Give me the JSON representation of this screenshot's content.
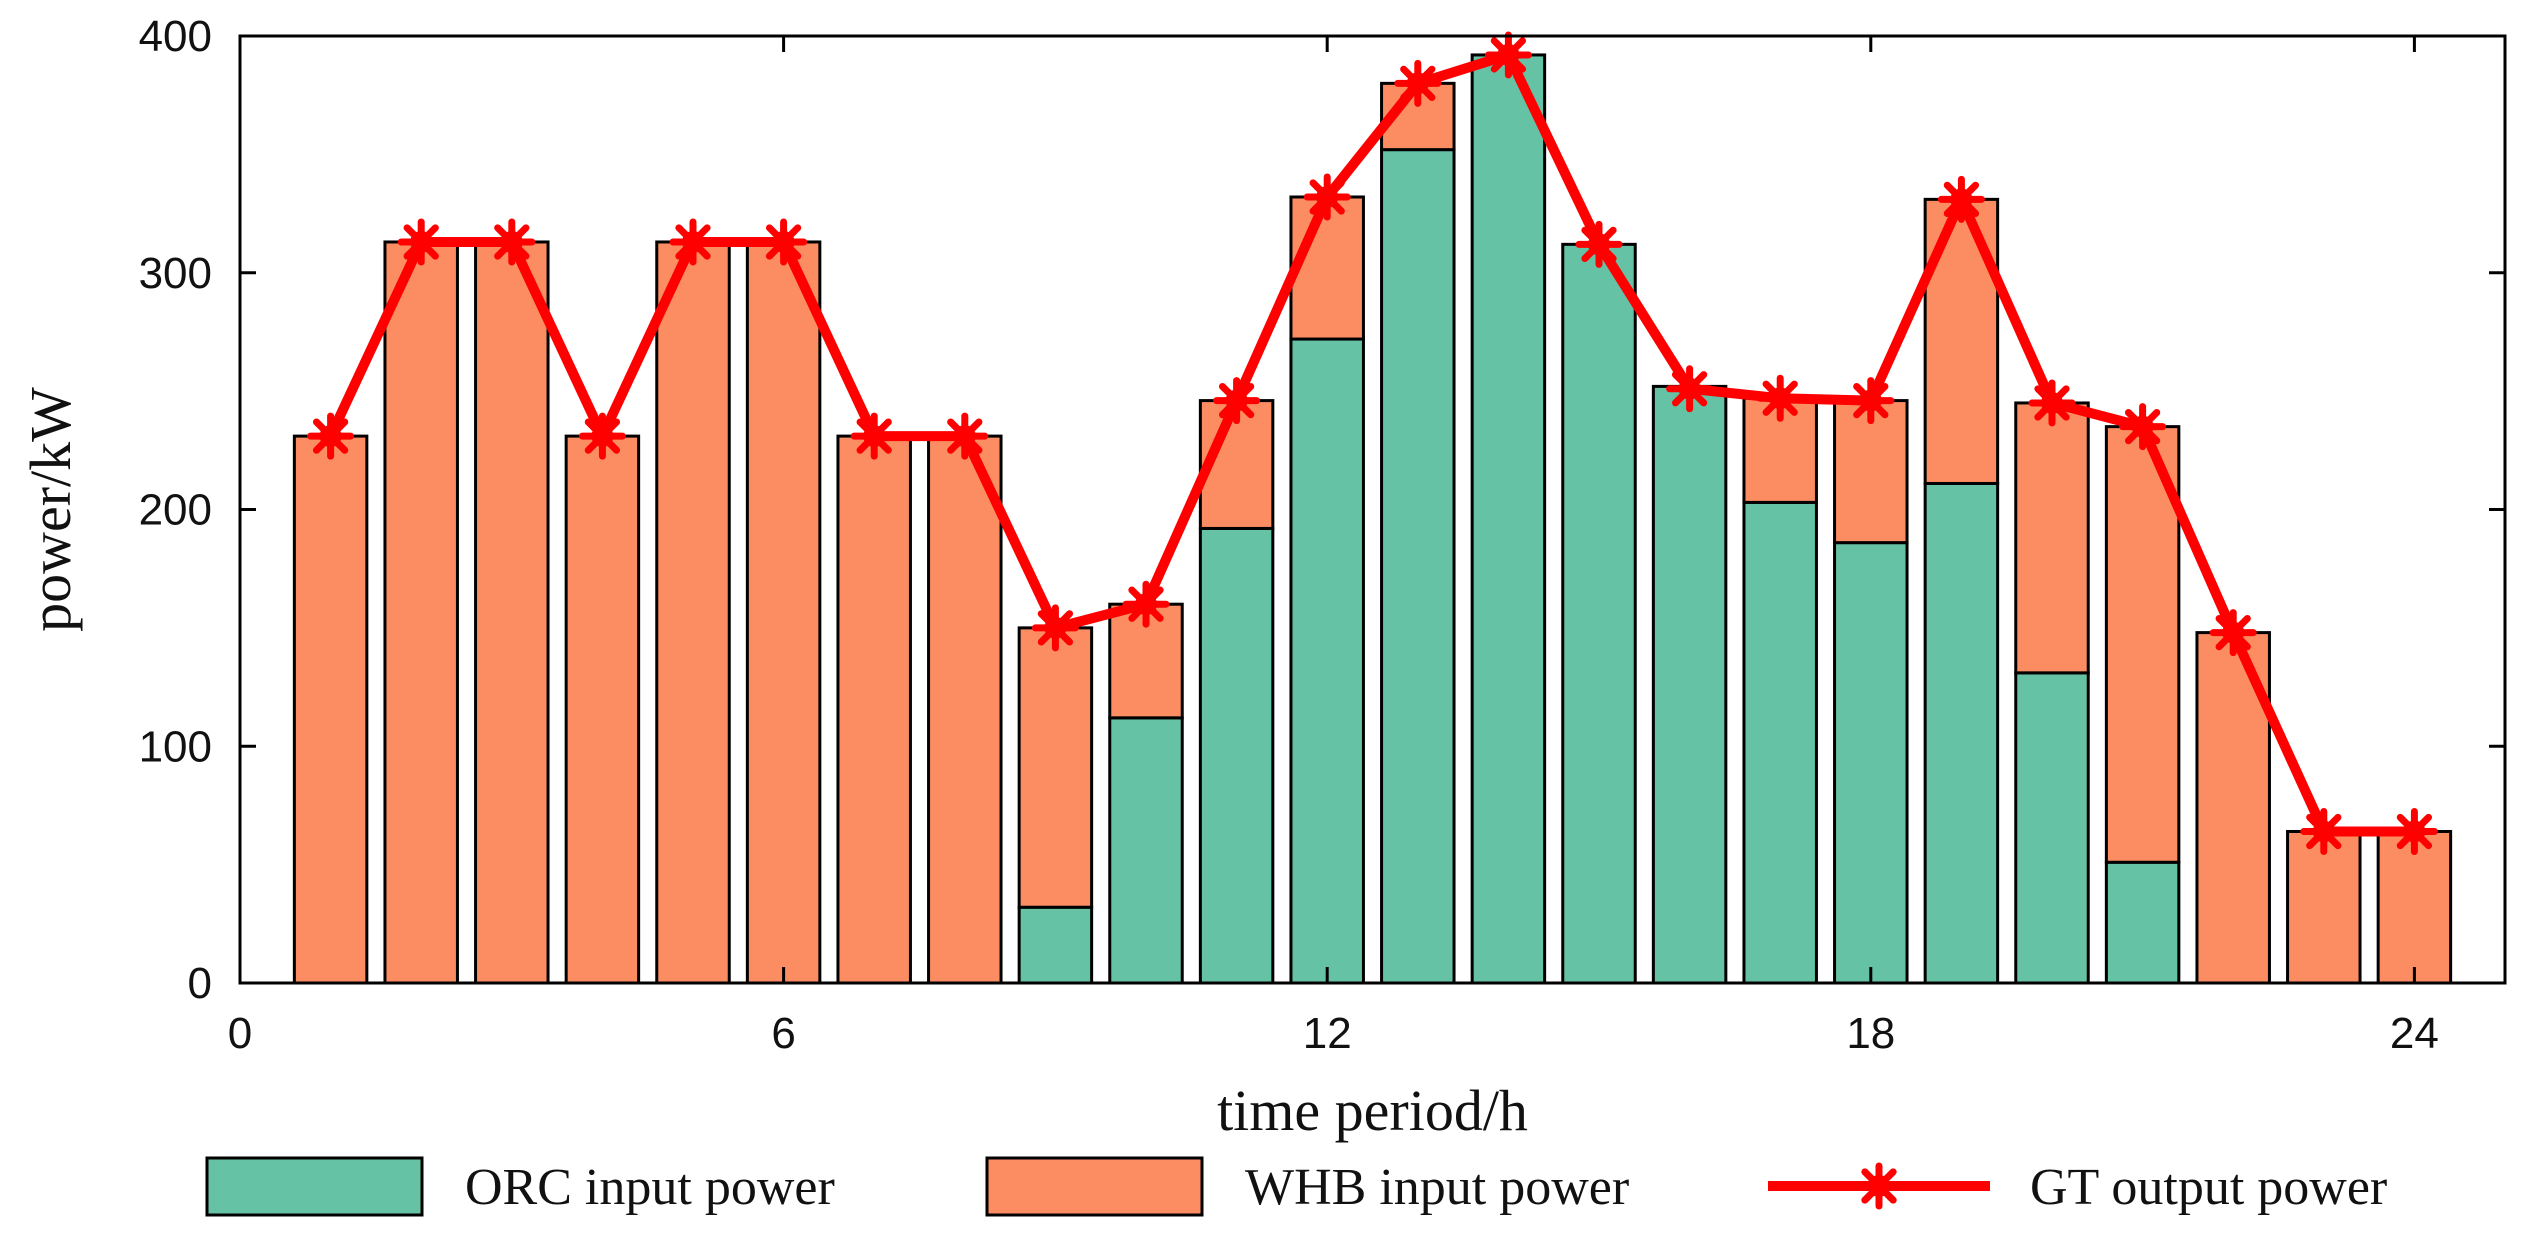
{
  "chart_data": {
    "type": "bar",
    "stacked": true,
    "x": [
      1,
      2,
      3,
      4,
      5,
      6,
      7,
      8,
      9,
      10,
      11,
      12,
      13,
      14,
      15,
      16,
      17,
      18,
      19,
      20,
      21,
      22,
      23,
      24
    ],
    "series": [
      {
        "name": "ORC input power",
        "kind": "bar",
        "color": "#66C2A5",
        "values": [
          0,
          0,
          0,
          0,
          0,
          0,
          0,
          0,
          32,
          112,
          192,
          272,
          352,
          392,
          312,
          252,
          203,
          186,
          211,
          131,
          51,
          0,
          0,
          0
        ]
      },
      {
        "name": "WHB input power",
        "kind": "bar",
        "color": "#FC8D62",
        "values": [
          231,
          313,
          313,
          231,
          313,
          313,
          231,
          231,
          118,
          48,
          54,
          60,
          28,
          0,
          0,
          0,
          44,
          60,
          120,
          114,
          184,
          148,
          64,
          64
        ]
      },
      {
        "name": "GT output power",
        "kind": "line",
        "color": "#FF0000",
        "marker": "asterisk",
        "values": [
          231,
          313,
          313,
          231,
          313,
          313,
          231,
          231,
          150,
          160,
          246,
          332,
          380,
          392,
          312,
          251,
          247,
          246,
          331,
          245,
          235,
          148,
          64,
          64
        ]
      }
    ],
    "xlabel": "time period/h",
    "ylabel": "power/kW",
    "xlim": [
      0,
      25
    ],
    "ylim": [
      0,
      400
    ],
    "xticks": [
      "0",
      "6",
      "12",
      "18",
      "24"
    ],
    "xtick_values": [
      0,
      6,
      12,
      18,
      24
    ],
    "yticks": [
      "0",
      "100",
      "200",
      "300",
      "400"
    ],
    "ytick_values": [
      0,
      100,
      200,
      300,
      400
    ],
    "grid": false,
    "legend_position": "bottom"
  }
}
